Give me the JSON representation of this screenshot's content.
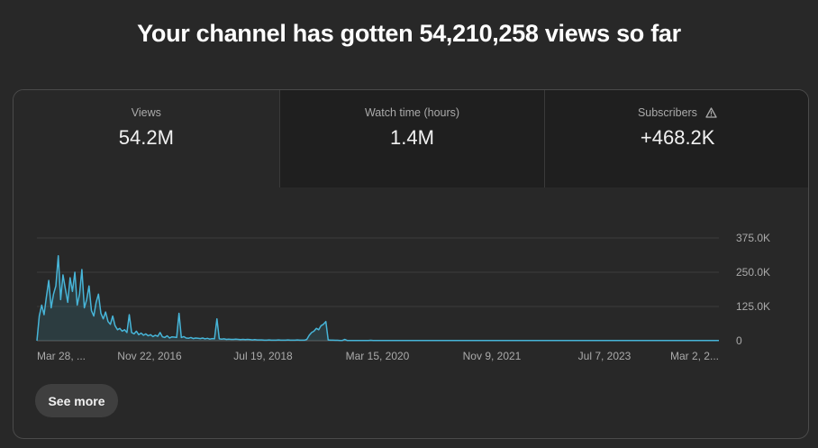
{
  "headline": "Your channel has gotten 54,210,258 views so far",
  "tabs": [
    {
      "label": "Views",
      "value": "54.2M",
      "selected": true
    },
    {
      "label": "Watch time (hours)",
      "value": "1.4M",
      "selected": false
    },
    {
      "label": "Subscribers",
      "value": "+468.2K",
      "selected": false,
      "icon": "warning-icon"
    }
  ],
  "see_more_label": "See more",
  "colors": {
    "accent": "#3ea6ff",
    "line": "#47b5d8",
    "background": "#282828"
  },
  "chart_data": {
    "type": "area",
    "x_tick_labels": [
      "Mar 28, ...",
      "Nov 22, 2016",
      "Jul 19, 2018",
      "Mar 15, 2020",
      "Nov 9, 2021",
      "Jul 7, 2023",
      "Mar 2, 2..."
    ],
    "y_tick_labels": [
      "375.0K",
      "250.0K",
      "125.0K",
      "0"
    ],
    "y_ticks": [
      375000,
      250000,
      125000,
      0
    ],
    "ylim": [
      0,
      375000
    ],
    "grid": true,
    "series": [
      {
        "values": [
          0,
          90000,
          130000,
          95000,
          160000,
          220000,
          120000,
          170000,
          200000,
          310000,
          150000,
          240000,
          190000,
          140000,
          230000,
          180000,
          250000,
          130000,
          170000,
          260000,
          120000,
          150000,
          200000,
          110000,
          90000,
          140000,
          170000,
          100000,
          80000,
          105000,
          70000,
          60000,
          90000,
          55000,
          40000,
          45000,
          35000,
          40000,
          30000,
          95000,
          30000,
          25000,
          35000,
          22000,
          28000,
          20000,
          25000,
          18000,
          22000,
          15000,
          20000,
          16000,
          30000,
          14000,
          12000,
          18000,
          10000,
          14000,
          13000,
          12000,
          100000,
          12000,
          15000,
          10000,
          9000,
          12000,
          8000,
          10000,
          9000,
          8000,
          10000,
          7000,
          9000,
          6000,
          8000,
          7000,
          80000,
          7000,
          6000,
          7000,
          5000,
          6000,
          5000,
          5000,
          6000,
          5000,
          4000,
          5000,
          4000,
          5000,
          4000,
          3000,
          4000,
          3000,
          3000,
          3000,
          2000,
          2000,
          3000,
          2000,
          2000,
          2000,
          3000,
          2000,
          2000,
          2000,
          3000,
          2000,
          2000,
          2000,
          3000,
          2000,
          2000,
          2000,
          5000,
          20000,
          30000,
          35000,
          45000,
          40000,
          55000,
          60000,
          70000,
          3000,
          2000,
          2000,
          1500,
          1500,
          1000,
          1000,
          5000,
          1000,
          1000,
          1000,
          1000,
          1000,
          800,
          800,
          1000,
          800,
          800,
          1500,
          800,
          700,
          700,
          700,
          700,
          600,
          600,
          600,
          600,
          600,
          600,
          500,
          500,
          500,
          500,
          500,
          500,
          500,
          500,
          500,
          500,
          500,
          500,
          500,
          500,
          500,
          500,
          500,
          500,
          500,
          500,
          500,
          500,
          500,
          500,
          500,
          500,
          500,
          500,
          500,
          500,
          500,
          500,
          500,
          500,
          500,
          500,
          500,
          500,
          500,
          500,
          500,
          500,
          500,
          500,
          500,
          500,
          500,
          500,
          500,
          500,
          500,
          500,
          500,
          500,
          500,
          500,
          500,
          500,
          500,
          500,
          500,
          500,
          500,
          500,
          500,
          500,
          500,
          500,
          500,
          500,
          500,
          500,
          500,
          500,
          500,
          500,
          500,
          500,
          500,
          500,
          500,
          500,
          500,
          500,
          500,
          500,
          500,
          500,
          500,
          500,
          500,
          500,
          500,
          500,
          500,
          500,
          500,
          500,
          500,
          500,
          500,
          500,
          500,
          500,
          500,
          500,
          500,
          500,
          500,
          500,
          500,
          500,
          500,
          500,
          500,
          500,
          500,
          500,
          500,
          500,
          500,
          500,
          500,
          500,
          500,
          500,
          500,
          500,
          500,
          500,
          500,
          500,
          500,
          500,
          500,
          500
        ]
      }
    ]
  }
}
